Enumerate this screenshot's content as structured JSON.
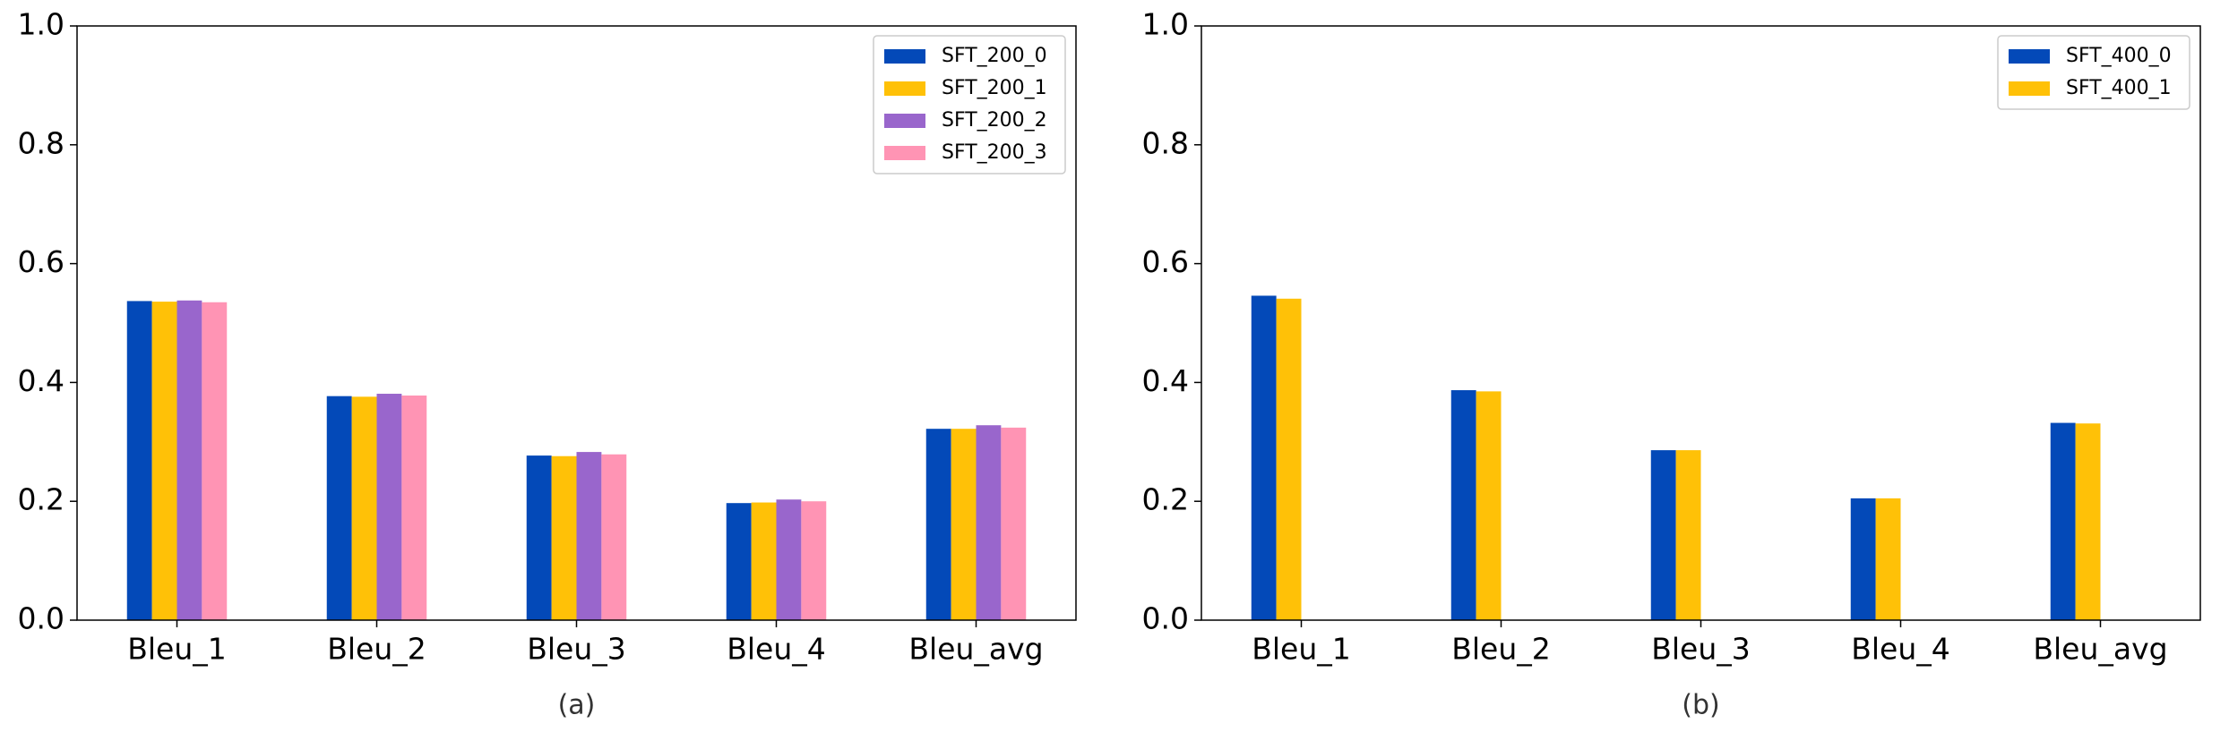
{
  "chart_data": [
    {
      "type": "bar",
      "caption": "(a)",
      "categories": [
        "Bleu_1",
        "Bleu_2",
        "Bleu_3",
        "Bleu_4",
        "Bleu_avg"
      ],
      "series": [
        {
          "name": "SFT_200_0",
          "color": "#0349b8",
          "values": [
            0.537,
            0.377,
            0.277,
            0.197,
            0.322
          ]
        },
        {
          "name": "SFT_200_1",
          "color": "#ffc107",
          "values": [
            0.536,
            0.376,
            0.276,
            0.198,
            0.322
          ]
        },
        {
          "name": "SFT_200_2",
          "color": "#9966cc",
          "values": [
            0.538,
            0.381,
            0.283,
            0.203,
            0.328
          ]
        },
        {
          "name": "SFT_200_3",
          "color": "#ff94b4",
          "values": [
            0.535,
            0.378,
            0.279,
            0.2,
            0.324
          ]
        }
      ],
      "ylim": [
        0,
        1
      ],
      "yticks": [
        {
          "value": 0,
          "label": "0.0"
        },
        {
          "value": 0.2,
          "label": "0.2"
        },
        {
          "value": 0.4,
          "label": "0.4"
        },
        {
          "value": 0.6,
          "label": "0.6"
        },
        {
          "value": 0.8,
          "label": "0.8"
        },
        {
          "value": 1,
          "label": "1.0"
        }
      ],
      "legend": "upper right"
    },
    {
      "type": "bar",
      "caption": "(b)",
      "categories": [
        "Bleu_1",
        "Bleu_2",
        "Bleu_3",
        "Bleu_4",
        "Bleu_avg"
      ],
      "series": [
        {
          "name": "SFT_400_0",
          "color": "#0349b8",
          "values": [
            0.546,
            0.387,
            0.286,
            0.205,
            0.332
          ]
        },
        {
          "name": "SFT_400_1",
          "color": "#ffc107",
          "values": [
            0.541,
            0.385,
            0.286,
            0.205,
            0.331
          ]
        }
      ],
      "ylim": [
        0,
        1
      ],
      "yticks": [
        {
          "value": 0,
          "label": "0.0"
        },
        {
          "value": 0.2,
          "label": "0.2"
        },
        {
          "value": 0.4,
          "label": "0.4"
        },
        {
          "value": 0.6,
          "label": "0.6"
        },
        {
          "value": 0.8,
          "label": "0.8"
        },
        {
          "value": 1,
          "label": "1.0"
        }
      ],
      "legend": "upper right"
    }
  ]
}
